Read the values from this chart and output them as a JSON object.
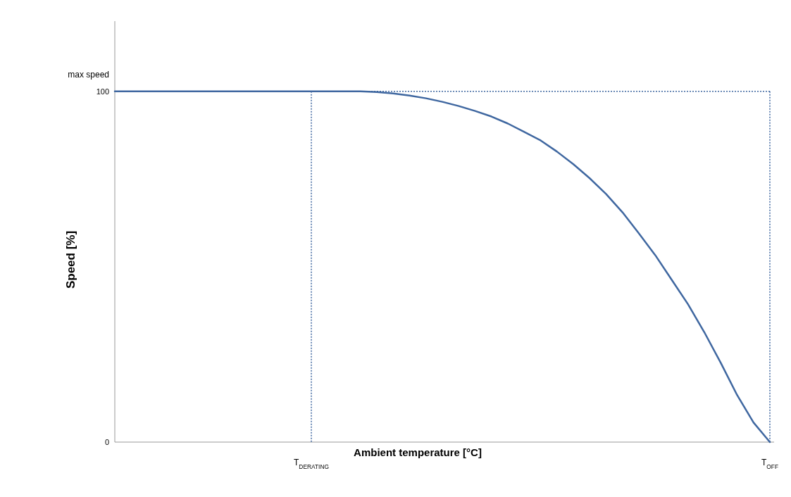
{
  "chart_data": {
    "type": "line",
    "xlabel": "Ambient temperature [°C]",
    "ylabel": "Speed [%]",
    "categories": [
      null,
      null,
      null,
      null,
      null,
      null,
      null,
      null,
      null,
      null,
      null,
      null,
      "T$_{DERATING}$",
      null,
      null,
      null,
      null,
      null,
      null,
      null,
      null,
      null,
      null,
      null,
      null,
      null,
      null,
      null,
      null,
      null,
      null,
      null,
      null,
      null,
      null,
      null,
      null,
      null,
      null,
      null,
      "T$_{OFF}$"
    ],
    "series": [
      {
        "color": "#3f67a0",
        "values": [
          100,
          100,
          100,
          100,
          100,
          100,
          100,
          100,
          100,
          100,
          100,
          100,
          100,
          100,
          100,
          100,
          99.8,
          99.4,
          98.8,
          98,
          97,
          95.8,
          94.4,
          92.8,
          90.8,
          88.4,
          86,
          82.8,
          79.2,
          75.2,
          70.7,
          65.5,
          59.5,
          53.3,
          46.3,
          39.3,
          31.3,
          22.6,
          13.4,
          5.6,
          0
        ]
      }
    ],
    "ylim": [
      0,
      120
    ],
    "yticks": [
      0,
      100
    ],
    "ref_lines": [
      {
        "axis": "y",
        "value": 100,
        "color": "#3f67a0",
        "line_style": "dotted"
      },
      {
        "axis": "x",
        "value": "T$_{DERATING}$",
        "color": "#3f67a0",
        "line_style": "dotted"
      },
      {
        "axis": "x",
        "value": "T$_{OFF}$",
        "color": "#3f67a0",
        "line_style": "dotted"
      }
    ],
    "annotations": [
      "max speed"
    ]
  }
}
